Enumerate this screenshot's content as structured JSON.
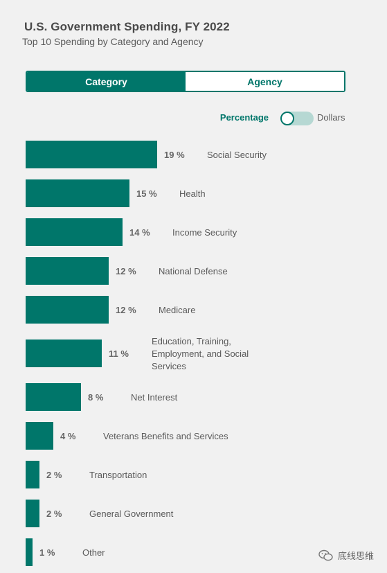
{
  "header": {
    "title": "U.S. Government Spending, FY 2022",
    "subtitle": "Top 10 Spending by Category and Agency"
  },
  "tabs": [
    {
      "label": "Category",
      "active": true
    },
    {
      "label": "Agency",
      "active": false
    }
  ],
  "toggle": {
    "left_label": "Percentage",
    "right_label": "Dollars",
    "state": "Percentage"
  },
  "colors": {
    "accent": "#00766a",
    "track": "#b6d8d3",
    "background": "#f1f1f1"
  },
  "watermark": {
    "text": "底线思维",
    "icon": "wechat-icon"
  },
  "chart_data": {
    "type": "bar",
    "orientation": "horizontal",
    "unit": "%",
    "categories": [
      "Social Security",
      "Health",
      "Income Security",
      "National Defense",
      "Medicare",
      [
        "Education, Training,",
        "Employment, and Social",
        "Services"
      ],
      "Net Interest",
      "Veterans Benefits and Services",
      "Transportation",
      "General Government",
      "Other"
    ],
    "values": [
      19,
      15,
      14,
      12,
      12,
      11,
      8,
      4,
      2,
      2,
      1
    ]
  }
}
